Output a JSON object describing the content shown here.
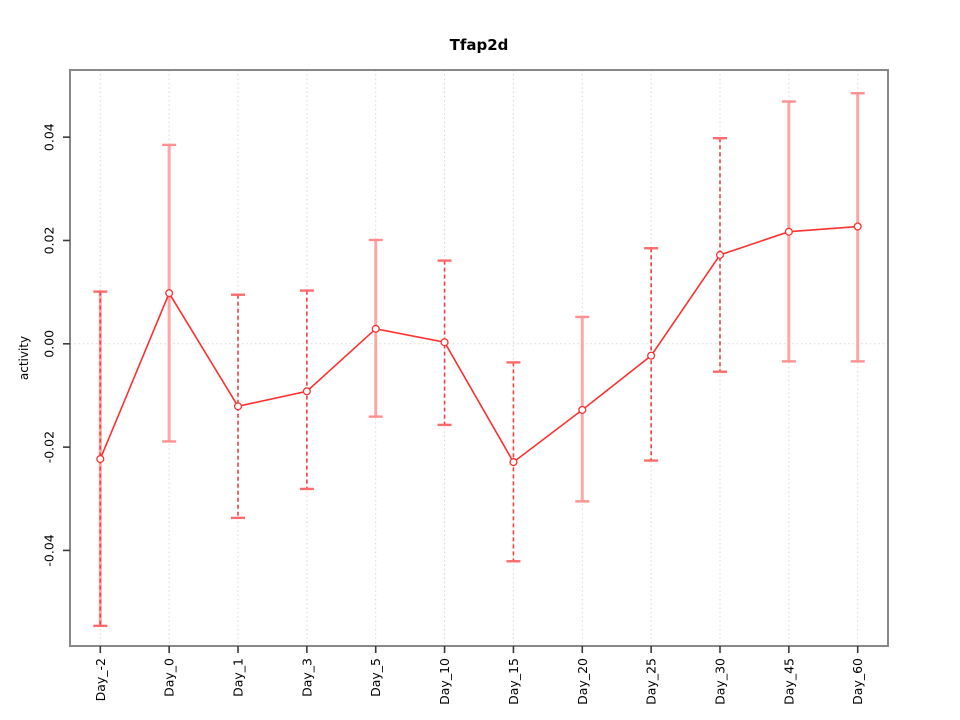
{
  "chart_data": {
    "type": "line",
    "title": "Tfap2d",
    "xlabel": "",
    "ylabel": "activity",
    "categories": [
      "Day_-2",
      "Day_0",
      "Day_1",
      "Day_3",
      "Day_5",
      "Day_10",
      "Day_15",
      "Day_20",
      "Day_25",
      "Day_30",
      "Day_45",
      "Day_60"
    ],
    "series": [
      {
        "name": "activity",
        "values": [
          -0.0223,
          0.0098,
          -0.0121,
          -0.0092,
          0.0029,
          0.0003,
          -0.0229,
          -0.0128,
          -0.0023,
          0.0172,
          0.0217,
          0.0227
        ],
        "upper": [
          0.0101,
          0.0385,
          0.0095,
          0.0103,
          0.0201,
          0.0161,
          -0.0036,
          0.0052,
          0.0185,
          0.0398,
          0.0469,
          0.0485
        ],
        "lower": [
          -0.0546,
          -0.0189,
          -0.0337,
          -0.0281,
          -0.0141,
          -0.0157,
          -0.0421,
          -0.0305,
          -0.0226,
          -0.0054,
          -0.0034,
          -0.0034
        ],
        "bar_styles": [
          "solid+dashed",
          "solid",
          "dashed",
          "dashed",
          "solid",
          "dashed",
          "dashed",
          "solid",
          "dashed",
          "dashed",
          "solid",
          "solid"
        ]
      }
    ],
    "ylim": [
      -0.0585,
      0.053
    ],
    "yticks": {
      "values": [
        -0.04,
        -0.02,
        0,
        0.02,
        0.04
      ],
      "labels": [
        "-0.04",
        "-0.02",
        "0.00",
        "0.02",
        "0.04"
      ]
    },
    "grid": {
      "vertical_at_categories": true,
      "hline_at": 0,
      "style": "dotted"
    },
    "legend": "none",
    "colors": {
      "line": "#ff3030",
      "point_stroke": "#ff3030",
      "point_fill": "#ffffff",
      "bar_solid": "#ffa6a6",
      "bar_dashed": "#f04040",
      "cap_solid": "#ff9090",
      "cap_dashed": "#ff6b6b",
      "grid": "#d8d8d8",
      "border": "#888888",
      "tick": "#3a3a3a",
      "text": "#000000"
    }
  }
}
